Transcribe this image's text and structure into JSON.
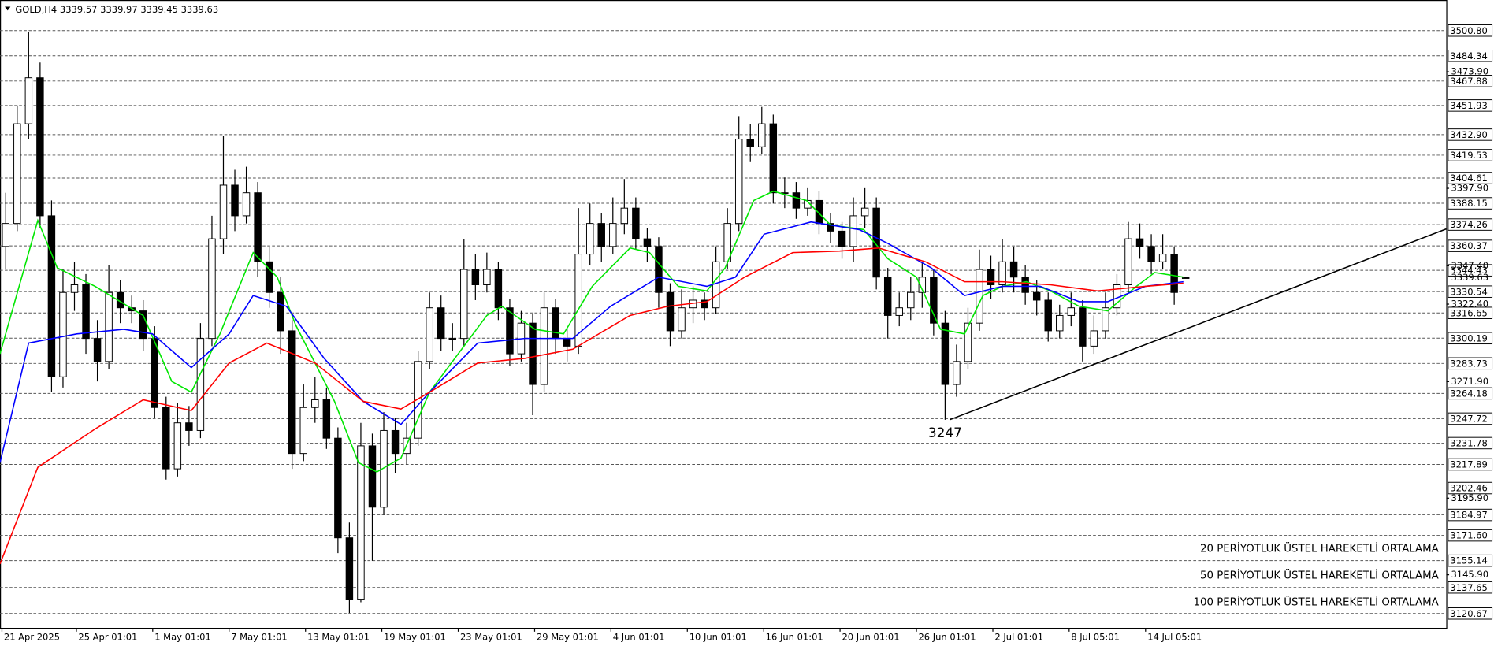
{
  "chart_data": {
    "type": "candlestick",
    "symbol": "GOLD,H4",
    "candle_color": "#000000",
    "xlim": [
      -0.5,
      125.75
    ],
    "ylim": [
      3111.3,
      3520.7
    ],
    "xticks": [
      {
        "value": -0.33,
        "label": "21 Apr 2025"
      },
      {
        "value": 6.17,
        "label": "25 Apr 01:01"
      },
      {
        "value": 12.83,
        "label": "1 May 01:01"
      },
      {
        "value": 19.5,
        "label": "7 May 01:01"
      },
      {
        "value": 26.17,
        "label": "13 May 01:01"
      },
      {
        "value": 32.83,
        "label": "19 May 01:01"
      },
      {
        "value": 39.5,
        "label": "23 May 01:01"
      },
      {
        "value": 46.17,
        "label": "29 May 01:01"
      },
      {
        "value": 52.83,
        "label": "4 Jun 01:01"
      },
      {
        "value": 59.5,
        "label": "10 Jun 01:01"
      },
      {
        "value": 66.17,
        "label": "16 Jun 01:01"
      },
      {
        "value": 72.83,
        "label": "20 Jun 01:01"
      },
      {
        "value": 79.5,
        "label": "26 Jun 01:01"
      },
      {
        "value": 86.17,
        "label": "2 Jul 01:01"
      },
      {
        "value": 92.83,
        "label": "8 Jul 05:01"
      },
      {
        "value": 99.5,
        "label": "14 Jul 05:01"
      }
    ],
    "yticks": [
      {
        "value": 3473.9,
        "label": "3473.90"
      },
      {
        "value": 3397.9,
        "label": "3397.90"
      },
      {
        "value": 3347.4,
        "label": "3347.40"
      },
      {
        "value": 3322.4,
        "label": "3322.40"
      },
      {
        "value": 3271.9,
        "label": "3271.90"
      },
      {
        "value": 3195.9,
        "label": "3195.90"
      },
      {
        "value": 3145.9,
        "label": "3145.90"
      }
    ],
    "levels": [
      {
        "value": 3500.8,
        "label": "3500.80"
      },
      3484.34,
      3467.88,
      3451.93,
      {
        "value": 3432.9,
        "label": "3432.90"
      },
      3419.53,
      3404.61,
      3388.15,
      3374.26,
      3360.37,
      3344.43,
      3330.54,
      3316.65,
      3300.19,
      3283.73,
      3264.18,
      3247.72,
      3231.78,
      3217.89,
      3202.46,
      3184.97,
      {
        "value": 3171.6,
        "label": "3171.60"
      },
      3155.14,
      3137.65,
      3120.67
    ],
    "candles": {
      "open": [
        3360,
        3375,
        3440,
        3470,
        3380,
        3275,
        3330,
        3335,
        3300,
        3285,
        3330,
        3320,
        3318,
        3300,
        3255,
        3215,
        3245,
        3240,
        3300,
        3365,
        3400,
        3380,
        3395,
        3350,
        3330,
        3305,
        3225,
        3255,
        3260,
        3235,
        3170,
        3130,
        3230,
        3190,
        3240,
        3225,
        3235,
        3285,
        3320,
        3300,
        3300,
        3345,
        3335,
        3345,
        3320,
        3290,
        3310,
        3270,
        3320,
        3300,
        3295,
        3355,
        3375,
        3360,
        3375,
        3385,
        3365,
        3360,
        3330,
        3305,
        3320,
        3325,
        3320,
        3350,
        3375,
        3430,
        3425,
        3440,
        3395,
        3395,
        3385,
        3390,
        3375,
        3370,
        3360,
        3380,
        3385,
        3340,
        3315,
        3320,
        3330,
        3340,
        3310,
        3270,
        3285,
        3310,
        3345,
        3335,
        3350,
        3340,
        3330,
        3325,
        3305,
        3315,
        3320,
        3295,
        3305,
        3320,
        3335,
        3365,
        3360,
        3350,
        3355,
        3339.57
      ],
      "high": [
        3395,
        3452,
        3500,
        3480,
        3390,
        3345,
        3350,
        3342,
        3312,
        3348,
        3338,
        3328,
        3325,
        3308,
        3262,
        3258,
        3256,
        3310,
        3380,
        3432,
        3410,
        3412,
        3402,
        3360,
        3340,
        3312,
        3270,
        3275,
        3268,
        3242,
        3180,
        3245,
        3238,
        3252,
        3248,
        3245,
        3292,
        3330,
        3328,
        3310,
        3365,
        3355,
        3356,
        3350,
        3326,
        3318,
        3316,
        3330,
        3326,
        3306,
        3385,
        3388,
        3382,
        3392,
        3404,
        3392,
        3372,
        3366,
        3336,
        3332,
        3334,
        3330,
        3360,
        3385,
        3445,
        3440,
        3451,
        3446,
        3405,
        3402,
        3398,
        3396,
        3382,
        3376,
        3392,
        3398,
        3392,
        3346,
        3330,
        3340,
        3350,
        3345,
        3318,
        3296,
        3320,
        3358,
        3354,
        3365,
        3360,
        3348,
        3338,
        3330,
        3322,
        3330,
        3325,
        3315,
        3330,
        3342,
        3376,
        3375,
        3368,
        3368,
        3360,
        3339.97
      ],
      "low": [
        3345,
        3370,
        3430,
        3372,
        3265,
        3268,
        3318,
        3290,
        3272,
        3280,
        3310,
        3310,
        3292,
        3248,
        3208,
        3210,
        3230,
        3235,
        3295,
        3355,
        3370,
        3375,
        3340,
        3320,
        3290,
        3215,
        3220,
        3245,
        3228,
        3160,
        3121,
        3128,
        3155,
        3185,
        3212,
        3218,
        3230,
        3280,
        3292,
        3292,
        3295,
        3325,
        3330,
        3312,
        3282,
        3285,
        3250,
        3265,
        3290,
        3285,
        3290,
        3348,
        3350,
        3355,
        3368,
        3358,
        3350,
        3320,
        3295,
        3300,
        3310,
        3312,
        3316,
        3345,
        3370,
        3415,
        3420,
        3388,
        3385,
        3378,
        3380,
        3368,
        3362,
        3352,
        3350,
        3372,
        3332,
        3300,
        3308,
        3312,
        3320,
        3302,
        3247,
        3262,
        3280,
        3305,
        3326,
        3330,
        3330,
        3322,
        3315,
        3298,
        3300,
        3308,
        3285,
        3290,
        3300,
        3315,
        3330,
        3352,
        3342,
        3345,
        3322,
        3339.45
      ],
      "close": [
        3375,
        3440,
        3470,
        3380,
        3275,
        3330,
        3335,
        3300,
        3285,
        3330,
        3320,
        3318,
        3300,
        3255,
        3215,
        3245,
        3240,
        3300,
        3365,
        3400,
        3380,
        3395,
        3350,
        3330,
        3305,
        3225,
        3255,
        3260,
        3235,
        3170,
        3130,
        3230,
        3190,
        3240,
        3225,
        3235,
        3285,
        3320,
        3300,
        3300,
        3345,
        3335,
        3345,
        3320,
        3290,
        3310,
        3270,
        3320,
        3300,
        3295,
        3355,
        3375,
        3360,
        3375,
        3385,
        3365,
        3360,
        3330,
        3305,
        3320,
        3325,
        3320,
        3350,
        3375,
        3430,
        3425,
        3440,
        3395,
        3395,
        3385,
        3390,
        3375,
        3370,
        3360,
        3380,
        3385,
        3340,
        3315,
        3320,
        3330,
        3340,
        3310,
        3270,
        3285,
        3310,
        3345,
        3335,
        3350,
        3340,
        3330,
        3325,
        3305,
        3315,
        3320,
        3295,
        3305,
        3320,
        3335,
        3365,
        3360,
        3350,
        3355,
        3330,
        3339.63
      ]
    },
    "series": [
      {
        "name": "20 PERİYOTLUK ÜSTEL HAREKETLİ ORTALAMA",
        "color": "#00e600",
        "x": [
          -0.5,
          2.8,
          4.5,
          7.8,
          12,
          14.5,
          16.2,
          18.7,
          21.6,
          23.7,
          25.3,
          28.7,
          30.8,
          32.4,
          34.5,
          37,
          42,
          43.3,
          46.2,
          48.7,
          51.2,
          54.5,
          56.2,
          58.7,
          61.2,
          62.8,
          65.3,
          67,
          69.9,
          72,
          74.9,
          77,
          79.5,
          81.6,
          83.7,
          85.3,
          87,
          89.1,
          91.2,
          93.7,
          96.2,
          98.7,
          100.3,
          102.8
        ],
        "values": [
          3290,
          3377,
          3346,
          3334,
          3315,
          3272,
          3265,
          3303,
          3356,
          3340,
          3309,
          3259,
          3219,
          3213,
          3222,
          3265,
          3315,
          3321,
          3306,
          3303,
          3334,
          3359,
          3356,
          3334,
          3331,
          3346,
          3390,
          3396,
          3390,
          3374,
          3371,
          3352,
          3340,
          3306,
          3303,
          3328,
          3334,
          3337,
          3331,
          3321,
          3318,
          3334,
          3343,
          3340
        ]
      },
      {
        "name": "50 PERİYOTLUK ÜSTEL HAREKETLİ ORTALAMA",
        "color": "#0000ff",
        "x": [
          -0.5,
          2,
          6.2,
          10.3,
          12.8,
          16.2,
          19.5,
          21.6,
          24.5,
          27.8,
          31.2,
          34.5,
          37,
          41.2,
          45.3,
          49.5,
          52.8,
          57,
          61.2,
          63.7,
          66.2,
          70.3,
          74.5,
          77,
          80.8,
          83.7,
          87,
          90.3,
          93.7,
          96.2,
          99.5,
          102.8
        ],
        "values": [
          3219,
          3297,
          3303,
          3306,
          3303,
          3281,
          3303,
          3328,
          3321,
          3287,
          3259,
          3244,
          3265,
          3297,
          3300,
          3300,
          3321,
          3340,
          3334,
          3340,
          3368,
          3376,
          3371,
          3362,
          3346,
          3328,
          3334,
          3334,
          3324,
          3324,
          3334,
          3337
        ]
      },
      {
        "name": "100 PERİYOTLUK ÜSTEL HAREKETLİ ORTALAMA",
        "color": "#ff0000",
        "x": [
          -0.5,
          2.8,
          7.8,
          12,
          16.2,
          19.5,
          22.8,
          27,
          31.2,
          34.5,
          37,
          41.2,
          45.3,
          49.5,
          54.5,
          57.8,
          61.2,
          64.5,
          68.7,
          72.8,
          76.2,
          80.3,
          83.7,
          87,
          91.2,
          95.3,
          99.5,
          102.8
        ],
        "values": [
          3153,
          3216,
          3241,
          3260,
          3253,
          3284,
          3297,
          3284,
          3259,
          3254,
          3265,
          3284,
          3287,
          3293,
          3315,
          3321,
          3324,
          3340,
          3356,
          3357,
          3359,
          3350,
          3337,
          3337,
          3335,
          3331,
          3334,
          3336
        ]
      }
    ],
    "trendline": {
      "x": [
        82.4,
        125.75
      ],
      "y": [
        3247,
        3371.4
      ],
      "color": "#000000"
    },
    "low_label_color": "#ff4500"
  }
}
